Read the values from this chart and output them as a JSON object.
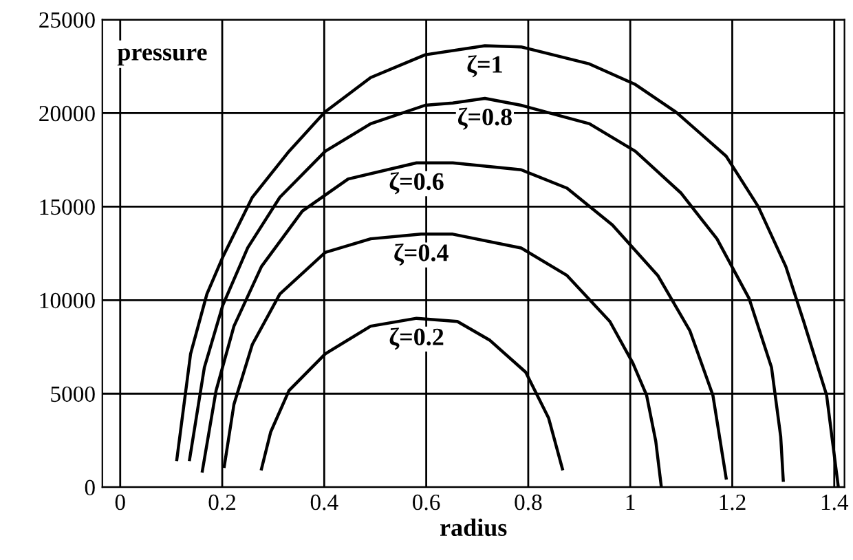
{
  "chart_data": {
    "type": "line",
    "xlabel": "radius",
    "ylabel": "pressure",
    "xlim": [
      -0.035,
      1.42
    ],
    "ylim": [
      0,
      25000
    ],
    "xticks": [
      0,
      0.2,
      0.4,
      0.6,
      0.8,
      1,
      1.2,
      1.4
    ],
    "yticks": [
      0,
      5000,
      10000,
      15000,
      20000,
      25000
    ],
    "grid": true,
    "legend": false,
    "marker": "none",
    "line_style": "solid",
    "series": [
      {
        "name": "ζ=1",
        "color": "#000000",
        "x": [
          0.111,
          0.138,
          0.17,
          0.201,
          0.259,
          0.331,
          0.401,
          0.491,
          0.598,
          0.715,
          0.786,
          0.92,
          1.01,
          1.09,
          1.188,
          1.251,
          1.305,
          1.34,
          1.385,
          1.408
        ],
        "values": [
          1476,
          7130,
          10330,
          12300,
          15500,
          17960,
          20050,
          21900,
          23120,
          23600,
          23540,
          22630,
          21530,
          20050,
          17700,
          15000,
          11800,
          8860,
          4920,
          0
        ]
      },
      {
        "name": "ζ=0.8",
        "color": "#000000",
        "x": [
          0.136,
          0.165,
          0.201,
          0.25,
          0.313,
          0.402,
          0.491,
          0.598,
          0.652,
          0.715,
          0.786,
          0.92,
          1.01,
          1.099,
          1.17,
          1.233,
          1.277,
          1.295,
          1.3
        ],
        "values": [
          1476,
          6400,
          9720,
          12800,
          15500,
          17960,
          19430,
          20420,
          20540,
          20790,
          20420,
          19430,
          17960,
          15740,
          13280,
          10090,
          6400,
          2700,
          370
        ]
      },
      {
        "name": "ζ=0.6",
        "color": "#000000",
        "x": [
          0.161,
          0.188,
          0.223,
          0.277,
          0.357,
          0.447,
          0.581,
          0.652,
          0.786,
          0.876,
          0.965,
          1.054,
          1.117,
          1.162,
          1.188
        ],
        "values": [
          860,
          5170,
          8610,
          11800,
          14760,
          16480,
          17340,
          17340,
          16970,
          15990,
          14020,
          11320,
          8360,
          4920,
          490
        ]
      },
      {
        "name": "ζ=0.4",
        "color": "#000000",
        "x": [
          0.204,
          0.223,
          0.259,
          0.313,
          0.402,
          0.491,
          0.59,
          0.652,
          0.786,
          0.876,
          0.96,
          1.005,
          1.032,
          1.05,
          1.061
        ],
        "values": [
          1110,
          4430,
          7630,
          10330,
          12550,
          13280,
          13530,
          13530,
          12790,
          11320,
          8860,
          6640,
          4920,
          2460,
          0
        ]
      },
      {
        "name": "ζ=0.2",
        "color": "#000000",
        "x": [
          0.277,
          0.295,
          0.331,
          0.402,
          0.491,
          0.581,
          0.661,
          0.724,
          0.795,
          0.84,
          0.867
        ],
        "values": [
          980,
          2950,
          5170,
          7130,
          8610,
          9030,
          8860,
          7870,
          6150,
          3690,
          980
        ]
      }
    ]
  }
}
